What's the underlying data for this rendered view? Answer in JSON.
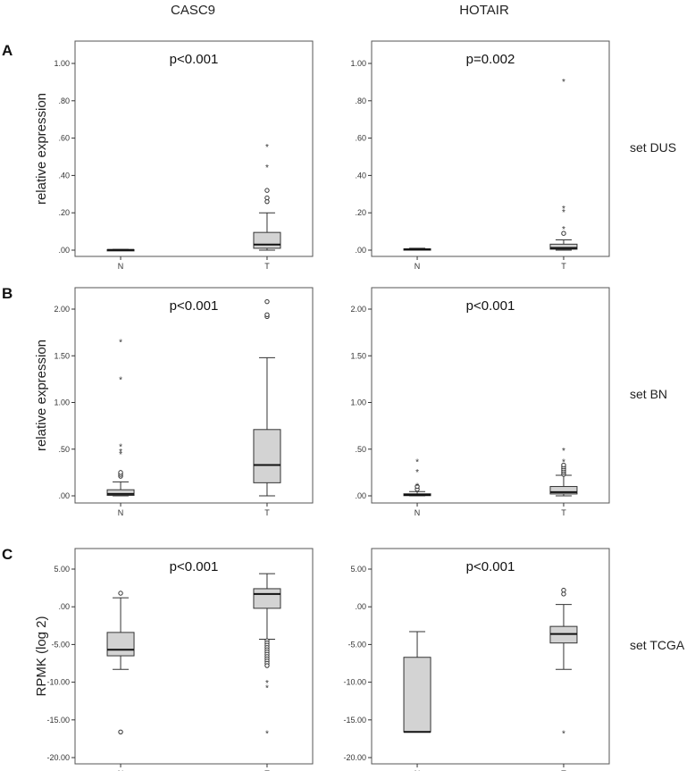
{
  "figure": {
    "column_titles": [
      "CASC9",
      "HOTAIR"
    ],
    "rows": [
      {
        "panel_letter": "A",
        "set_label": "set DUS",
        "ylabel": "relative expression"
      },
      {
        "panel_letter": "B",
        "set_label": "set BN",
        "ylabel": "relative expression"
      },
      {
        "panel_letter": "C",
        "set_label": "set TCGA",
        "ylabel": "RPMK (log 2)"
      }
    ]
  },
  "chart_data": [
    {
      "type": "box",
      "row": 0,
      "col": 0,
      "title": "CASC9",
      "annotation": "p<0.001",
      "ylabel": "relative expression",
      "ylim": [
        0,
        1.1
      ],
      "yticks": [
        0,
        0.2,
        0.4,
        0.6,
        0.8,
        1.0
      ],
      "ytick_labels": [
        ".00",
        ".20",
        ".40",
        ".60",
        ".80",
        "1.00"
      ],
      "categories": [
        "N",
        "T"
      ],
      "boxes": [
        {
          "min": 0.0,
          "q1": 0.0,
          "median": 0.001,
          "q3": 0.003,
          "max": 0.004,
          "outliers": [],
          "extremes": []
        },
        {
          "min": 0.0,
          "q1": 0.01,
          "median": 0.03,
          "q3": 0.095,
          "max": 0.2,
          "outliers": [
            0.26,
            0.28,
            0.32
          ],
          "extremes": [
            0.45,
            0.56
          ]
        }
      ]
    },
    {
      "type": "box",
      "row": 0,
      "col": 1,
      "title": "HOTAIR",
      "annotation": "p=0.002",
      "ylabel": "",
      "ylim": [
        0,
        1.1
      ],
      "yticks": [
        0,
        0.2,
        0.4,
        0.6,
        0.8,
        1.0
      ],
      "ytick_labels": [
        ".00",
        ".20",
        ".40",
        ".60",
        ".80",
        "1.00"
      ],
      "categories": [
        "N",
        "T"
      ],
      "boxes": [
        {
          "min": 0.0,
          "q1": 0.002,
          "median": 0.004,
          "q3": 0.007,
          "max": 0.01,
          "outliers": [],
          "extremes": []
        },
        {
          "min": 0.0,
          "q1": 0.005,
          "median": 0.012,
          "q3": 0.032,
          "max": 0.055,
          "outliers": [
            0.09
          ],
          "extremes": [
            0.12,
            0.21,
            0.23,
            0.91
          ]
        }
      ]
    },
    {
      "type": "box",
      "row": 1,
      "col": 0,
      "title": "",
      "annotation": "p<0.001",
      "ylabel": "relative expression",
      "ylim": [
        0,
        2.25
      ],
      "yticks": [
        0,
        0.5,
        1.0,
        1.5,
        2.0
      ],
      "ytick_labels": [
        ".00",
        ".50",
        "1.00",
        "1.50",
        "2.00"
      ],
      "categories": [
        "N",
        "T"
      ],
      "boxes": [
        {
          "min": 0.0,
          "q1": 0.005,
          "median": 0.02,
          "q3": 0.065,
          "max": 0.15,
          "outliers": [
            0.21,
            0.23,
            0.25
          ],
          "extremes": [
            0.46,
            0.49,
            0.54,
            1.26,
            1.66
          ]
        },
        {
          "min": 0.0,
          "q1": 0.14,
          "median": 0.33,
          "q3": 0.71,
          "max": 1.48,
          "outliers": [
            1.92,
            1.94,
            2.08
          ],
          "extremes": []
        }
      ]
    },
    {
      "type": "box",
      "row": 1,
      "col": 1,
      "title": "",
      "annotation": "p<0.001",
      "ylabel": "",
      "ylim": [
        0,
        2.25
      ],
      "yticks": [
        0,
        0.5,
        1.0,
        1.5,
        2.0
      ],
      "ytick_labels": [
        ".00",
        ".50",
        "1.00",
        "1.50",
        "2.00"
      ],
      "categories": [
        "N",
        "T"
      ],
      "boxes": [
        {
          "min": 0.0,
          "q1": 0.002,
          "median": 0.01,
          "q3": 0.022,
          "max": 0.045,
          "outliers": [
            0.07,
            0.1
          ],
          "extremes": [
            0.12,
            0.27,
            0.38
          ]
        },
        {
          "min": 0.0,
          "q1": 0.02,
          "median": 0.04,
          "q3": 0.1,
          "max": 0.22,
          "outliers": [
            0.23,
            0.25,
            0.27,
            0.29,
            0.31,
            0.33
          ],
          "extremes": [
            0.38,
            0.5
          ]
        }
      ]
    },
    {
      "type": "box",
      "row": 2,
      "col": 0,
      "title": "",
      "annotation": "p<0.001",
      "ylabel": "RPMK (log 2)",
      "ylim": [
        -20,
        6
      ],
      "yticks": [
        -20,
        -15,
        -10,
        -5,
        0,
        5
      ],
      "ytick_labels": [
        "-20.00",
        "-15.00",
        "-10.00",
        "-5.00",
        ".00",
        "5.00"
      ],
      "categories": [
        "N",
        "T"
      ],
      "boxes": [
        {
          "min": -8.3,
          "q1": -6.5,
          "median": -5.7,
          "q3": -3.4,
          "max": 1.2,
          "outliers": [
            1.8,
            -16.6
          ],
          "extremes": []
        },
        {
          "min": -4.3,
          "q1": -0.2,
          "median": 1.7,
          "q3": 2.4,
          "max": 4.4,
          "outliers": [
            -4.5,
            -4.8,
            -5.1,
            -5.4,
            -5.7,
            -6.0,
            -6.3,
            -6.6,
            -6.9,
            -7.2,
            -7.5,
            -7.8
          ],
          "extremes": [
            -9.9,
            -10.6,
            -16.6
          ]
        }
      ]
    },
    {
      "type": "box",
      "row": 2,
      "col": 1,
      "title": "",
      "annotation": "p<0.001",
      "ylabel": "",
      "ylim": [
        -20,
        6
      ],
      "yticks": [
        -20,
        -15,
        -10,
        -5,
        0,
        5
      ],
      "ytick_labels": [
        "-20.00",
        "-15.00",
        "-10.00",
        "-5.00",
        ".00",
        "5.00"
      ],
      "categories": [
        "N",
        "T"
      ],
      "boxes": [
        {
          "min": -16.6,
          "q1": -16.6,
          "median": -16.6,
          "q3": -6.7,
          "max": -3.3,
          "outliers": [],
          "extremes": []
        },
        {
          "min": -8.3,
          "q1": -4.8,
          "median": -3.6,
          "q3": -2.6,
          "max": 0.3,
          "outliers": [
            1.7,
            2.2
          ],
          "extremes": [
            -16.6
          ]
        }
      ]
    }
  ]
}
